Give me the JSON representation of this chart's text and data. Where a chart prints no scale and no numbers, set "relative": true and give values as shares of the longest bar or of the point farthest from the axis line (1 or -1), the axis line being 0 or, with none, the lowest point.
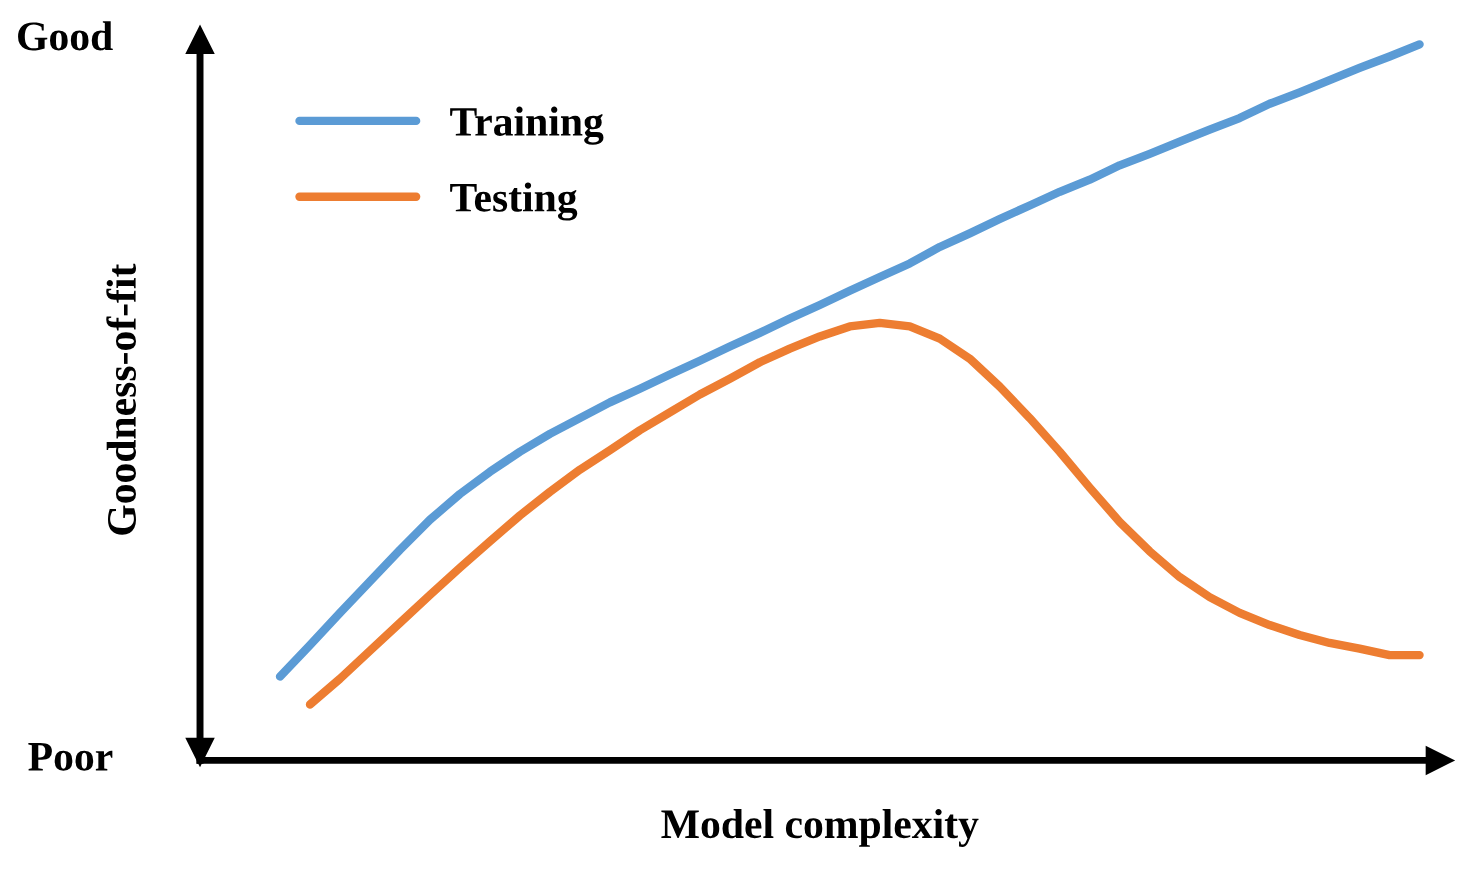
{
  "chart_data": {
    "type": "line",
    "relative": true,
    "xlabel": "Model complexity",
    "ylabel": "Goodness-of-fit",
    "annotations": [
      "Good",
      "Poor"
    ],
    "categories": [
      null,
      null,
      null,
      null,
      null,
      null,
      null,
      null,
      null,
      null,
      null,
      null,
      null,
      null,
      null,
      null,
      null,
      null,
      null,
      null,
      null,
      null,
      null,
      null,
      null,
      null,
      null,
      null,
      null,
      null,
      null,
      null,
      null,
      null,
      null,
      null,
      null,
      null,
      null
    ],
    "series": [
      {
        "name": "Training",
        "color": "#5b9bd5",
        "values": [
          0.117,
          0.161,
          0.206,
          0.25,
          0.294,
          0.336,
          0.372,
          0.403,
          0.431,
          0.456,
          0.478,
          0.5,
          0.519,
          0.539,
          0.558,
          0.578,
          0.597,
          0.617,
          0.636,
          0.656,
          0.675,
          0.694,
          0.717,
          0.736,
          0.756,
          0.775,
          0.794,
          0.811,
          0.831,
          0.847,
          0.864,
          0.881,
          0.897,
          0.917,
          0.933,
          0.95,
          0.967,
          0.983,
          1
        ]
      },
      {
        "name": "Testing",
        "color": "#ed7d31",
        "values": [
          null,
          0.078,
          0.114,
          0.153,
          0.192,
          0.231,
          0.269,
          0.306,
          0.342,
          0.375,
          0.406,
          0.433,
          0.461,
          0.486,
          0.511,
          0.533,
          0.556,
          0.575,
          0.592,
          0.606,
          0.611,
          0.606,
          0.589,
          0.561,
          0.522,
          0.478,
          0.431,
          0.381,
          0.333,
          0.292,
          0.256,
          0.228,
          0.206,
          0.189,
          0.175,
          0.164,
          0.156,
          0.147,
          0.147
        ]
      }
    ],
    "legend": "top left",
    "grid": false,
    "marker": "none",
    "line_style": "solid"
  }
}
